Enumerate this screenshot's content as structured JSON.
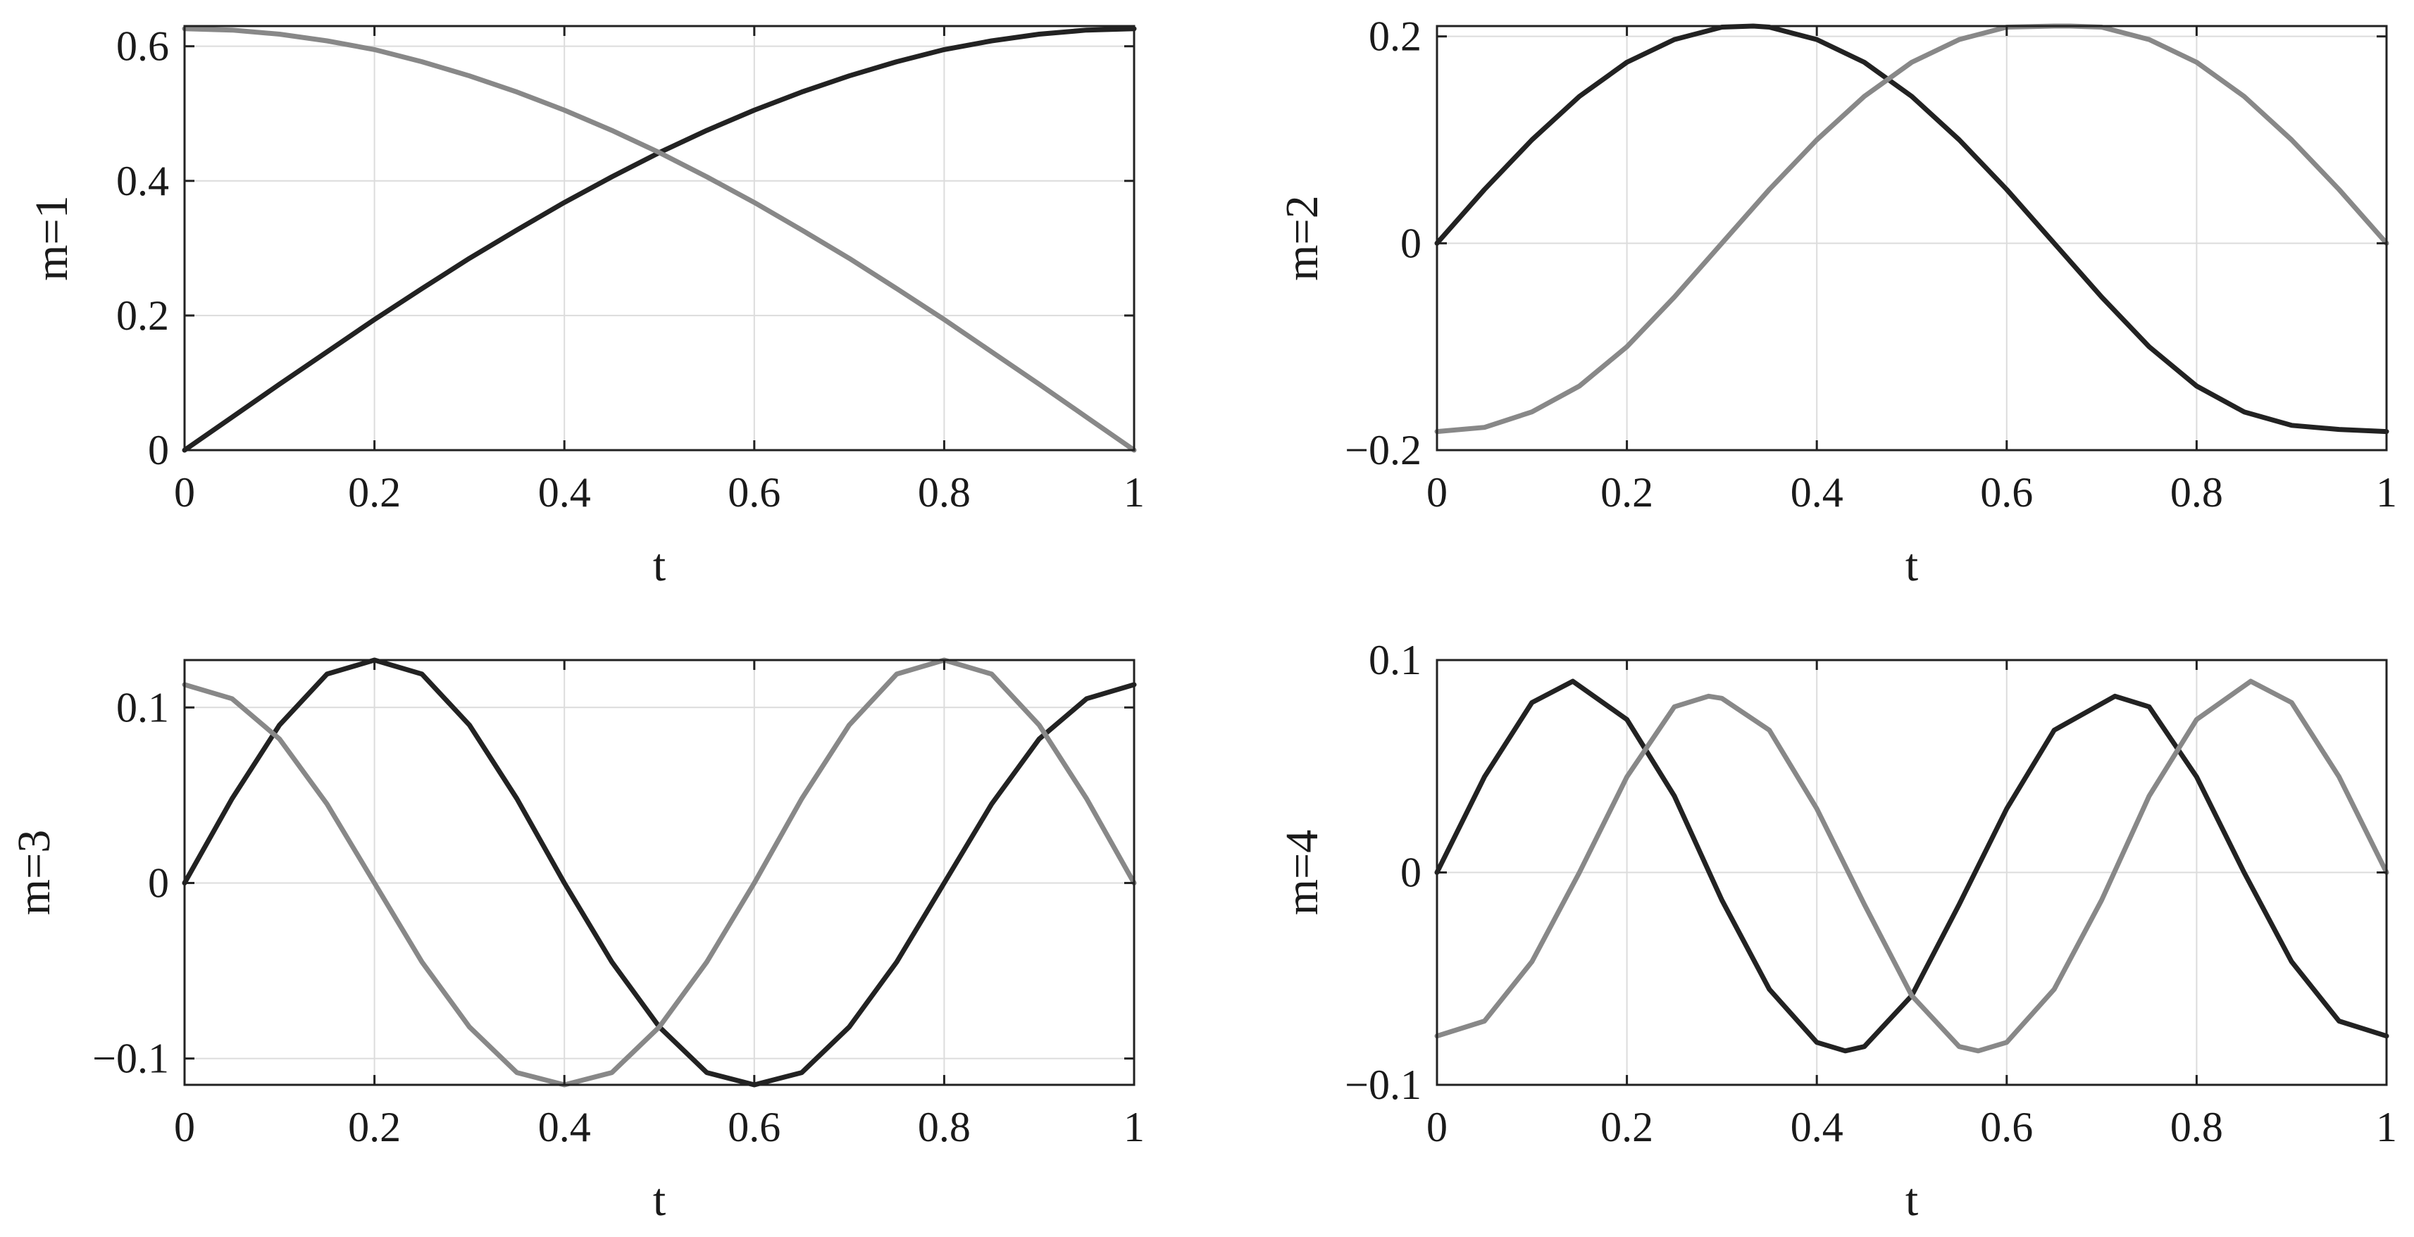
{
  "chart_data": [
    {
      "type": "line",
      "xlabel": "t",
      "ylabel": "m=1",
      "xlim": [
        0,
        1
      ],
      "ylim": [
        0,
        0.63
      ],
      "xticks": [
        0,
        0.2,
        0.4,
        0.6,
        0.8,
        1
      ],
      "xtick_labels": [
        "0",
        "0.2",
        "0.4",
        "0.6",
        "0.8",
        "1"
      ],
      "yticks": [
        0,
        0.2,
        0.4,
        0.6
      ],
      "ytick_labels": [
        "0",
        "0.2",
        "0.4",
        "0.6"
      ],
      "grid": true,
      "series": [
        {
          "color": "#222222",
          "x": [
            0,
            0.05,
            0.1,
            0.15,
            0.2,
            0.25,
            0.3,
            0.35,
            0.4,
            0.45,
            0.5,
            0.55,
            0.6,
            0.65,
            0.7,
            0.75,
            0.8,
            0.85,
            0.9,
            0.95,
            1
          ],
          "y": [
            0,
            0.049,
            0.098,
            0.146,
            0.194,
            0.24,
            0.285,
            0.327,
            0.368,
            0.406,
            0.442,
            0.475,
            0.505,
            0.532,
            0.556,
            0.577,
            0.595,
            0.608,
            0.618,
            0.624,
            0.626
          ]
        },
        {
          "color": "#888888",
          "x": [
            0,
            0.05,
            0.1,
            0.15,
            0.2,
            0.25,
            0.3,
            0.35,
            0.4,
            0.45,
            0.5,
            0.55,
            0.6,
            0.65,
            0.7,
            0.75,
            0.8,
            0.85,
            0.9,
            0.95,
            1
          ],
          "y": [
            0.626,
            0.624,
            0.618,
            0.608,
            0.595,
            0.577,
            0.556,
            0.532,
            0.505,
            0.475,
            0.442,
            0.406,
            0.368,
            0.327,
            0.285,
            0.24,
            0.194,
            0.146,
            0.098,
            0.049,
            0
          ]
        }
      ]
    },
    {
      "type": "line",
      "xlabel": "t",
      "ylabel": "m=2",
      "xlim": [
        0,
        1
      ],
      "ylim": [
        -0.2,
        0.21
      ],
      "xticks": [
        0,
        0.2,
        0.4,
        0.6,
        0.8,
        1
      ],
      "xtick_labels": [
        "0",
        "0.2",
        "0.4",
        "0.6",
        "0.8",
        "1"
      ],
      "yticks": [
        -0.2,
        0,
        0.2
      ],
      "ytick_labels": [
        "−0.2",
        "0",
        "0.2"
      ],
      "grid": true,
      "series": [
        {
          "color": "#222222",
          "x": [
            0,
            0.05,
            0.1,
            0.15,
            0.2,
            0.25,
            0.3,
            0.333,
            0.35,
            0.4,
            0.45,
            0.5,
            0.55,
            0.6,
            0.65,
            0.7,
            0.75,
            0.8,
            0.85,
            0.9,
            0.95,
            1
          ],
          "y": [
            0,
            0.052,
            0.1,
            0.142,
            0.175,
            0.197,
            0.209,
            0.21,
            0.209,
            0.197,
            0.175,
            0.142,
            0.1,
            0.052,
            0,
            -0.052,
            -0.1,
            -0.138,
            -0.163,
            -0.176,
            -0.18,
            -0.182
          ]
        },
        {
          "color": "#888888",
          "x": [
            0,
            0.05,
            0.1,
            0.15,
            0.2,
            0.25,
            0.3,
            0.35,
            0.4,
            0.45,
            0.5,
            0.55,
            0.6,
            0.65,
            0.667,
            0.7,
            0.75,
            0.8,
            0.85,
            0.9,
            0.95,
            1
          ],
          "y": [
            -0.182,
            -0.178,
            -0.163,
            -0.138,
            -0.1,
            -0.052,
            0,
            0.052,
            0.1,
            0.142,
            0.175,
            0.197,
            0.209,
            0.21,
            0.21,
            0.209,
            0.197,
            0.175,
            0.142,
            0.1,
            0.052,
            0
          ]
        }
      ]
    },
    {
      "type": "line",
      "xlabel": "t",
      "ylabel": "m=3",
      "xlim": [
        0,
        1
      ],
      "ylim": [
        -0.115,
        0.127
      ],
      "xticks": [
        0,
        0.2,
        0.4,
        0.6,
        0.8,
        1
      ],
      "xtick_labels": [
        "0",
        "0.2",
        "0.4",
        "0.6",
        "0.8",
        "1"
      ],
      "yticks": [
        -0.1,
        0,
        0.1
      ],
      "ytick_labels": [
        "−0.1",
        "0",
        "0.1"
      ],
      "grid": true,
      "series": [
        {
          "color": "#222222",
          "x": [
            0,
            0.05,
            0.1,
            0.15,
            0.2,
            0.25,
            0.3,
            0.35,
            0.4,
            0.45,
            0.5,
            0.55,
            0.6,
            0.65,
            0.7,
            0.75,
            0.8,
            0.85,
            0.9,
            0.95,
            1
          ],
          "y": [
            0,
            0.048,
            0.09,
            0.119,
            0.127,
            0.119,
            0.09,
            0.048,
            0,
            -0.045,
            -0.082,
            -0.108,
            -0.115,
            -0.108,
            -0.082,
            -0.045,
            0,
            0.045,
            0.082,
            0.105,
            0.113
          ]
        },
        {
          "color": "#888888",
          "x": [
            0,
            0.05,
            0.1,
            0.15,
            0.2,
            0.25,
            0.3,
            0.35,
            0.4,
            0.45,
            0.5,
            0.55,
            0.6,
            0.65,
            0.7,
            0.75,
            0.8,
            0.85,
            0.9,
            0.95,
            1
          ],
          "y": [
            0.113,
            0.105,
            0.082,
            0.045,
            0,
            -0.045,
            -0.082,
            -0.108,
            -0.115,
            -0.108,
            -0.082,
            -0.045,
            0,
            0.048,
            0.09,
            0.119,
            0.127,
            0.119,
            0.09,
            0.048,
            0
          ]
        }
      ]
    },
    {
      "type": "line",
      "xlabel": "t",
      "ylabel": "m=4",
      "xlim": [
        0,
        1
      ],
      "ylim": [
        -0.1,
        0.1
      ],
      "xticks": [
        0,
        0.2,
        0.4,
        0.6,
        0.8,
        1
      ],
      "xtick_labels": [
        "0",
        "0.2",
        "0.4",
        "0.6",
        "0.8",
        "1"
      ],
      "yticks": [
        -0.1,
        0,
        0.1
      ],
      "ytick_labels": [
        "−0.1",
        "0",
        "0.1"
      ],
      "grid": true,
      "series": [
        {
          "color": "#222222",
          "x": [
            0,
            0.05,
            0.1,
            0.143,
            0.2,
            0.25,
            0.3,
            0.35,
            0.4,
            0.43,
            0.45,
            0.5,
            0.55,
            0.6,
            0.65,
            0.714,
            0.75,
            0.8,
            0.85,
            0.9,
            0.95,
            1
          ],
          "y": [
            0,
            0.045,
            0.08,
            0.09,
            0.072,
            0.036,
            -0.013,
            -0.055,
            -0.08,
            -0.084,
            -0.082,
            -0.058,
            -0.015,
            0.03,
            0.067,
            0.083,
            0.078,
            0.045,
            0,
            -0.042,
            -0.07,
            -0.077
          ]
        },
        {
          "color": "#888888",
          "x": [
            0,
            0.05,
            0.1,
            0.15,
            0.2,
            0.25,
            0.286,
            0.3,
            0.35,
            0.4,
            0.45,
            0.5,
            0.55,
            0.57,
            0.6,
            0.65,
            0.7,
            0.75,
            0.8,
            0.857,
            0.9,
            0.95,
            1
          ],
          "y": [
            -0.077,
            -0.07,
            -0.042,
            0,
            0.045,
            0.078,
            0.083,
            0.082,
            0.067,
            0.03,
            -0.015,
            -0.058,
            -0.082,
            -0.084,
            -0.08,
            -0.055,
            -0.013,
            0.036,
            0.072,
            0.09,
            0.08,
            0.045,
            0
          ]
        }
      ]
    }
  ]
}
